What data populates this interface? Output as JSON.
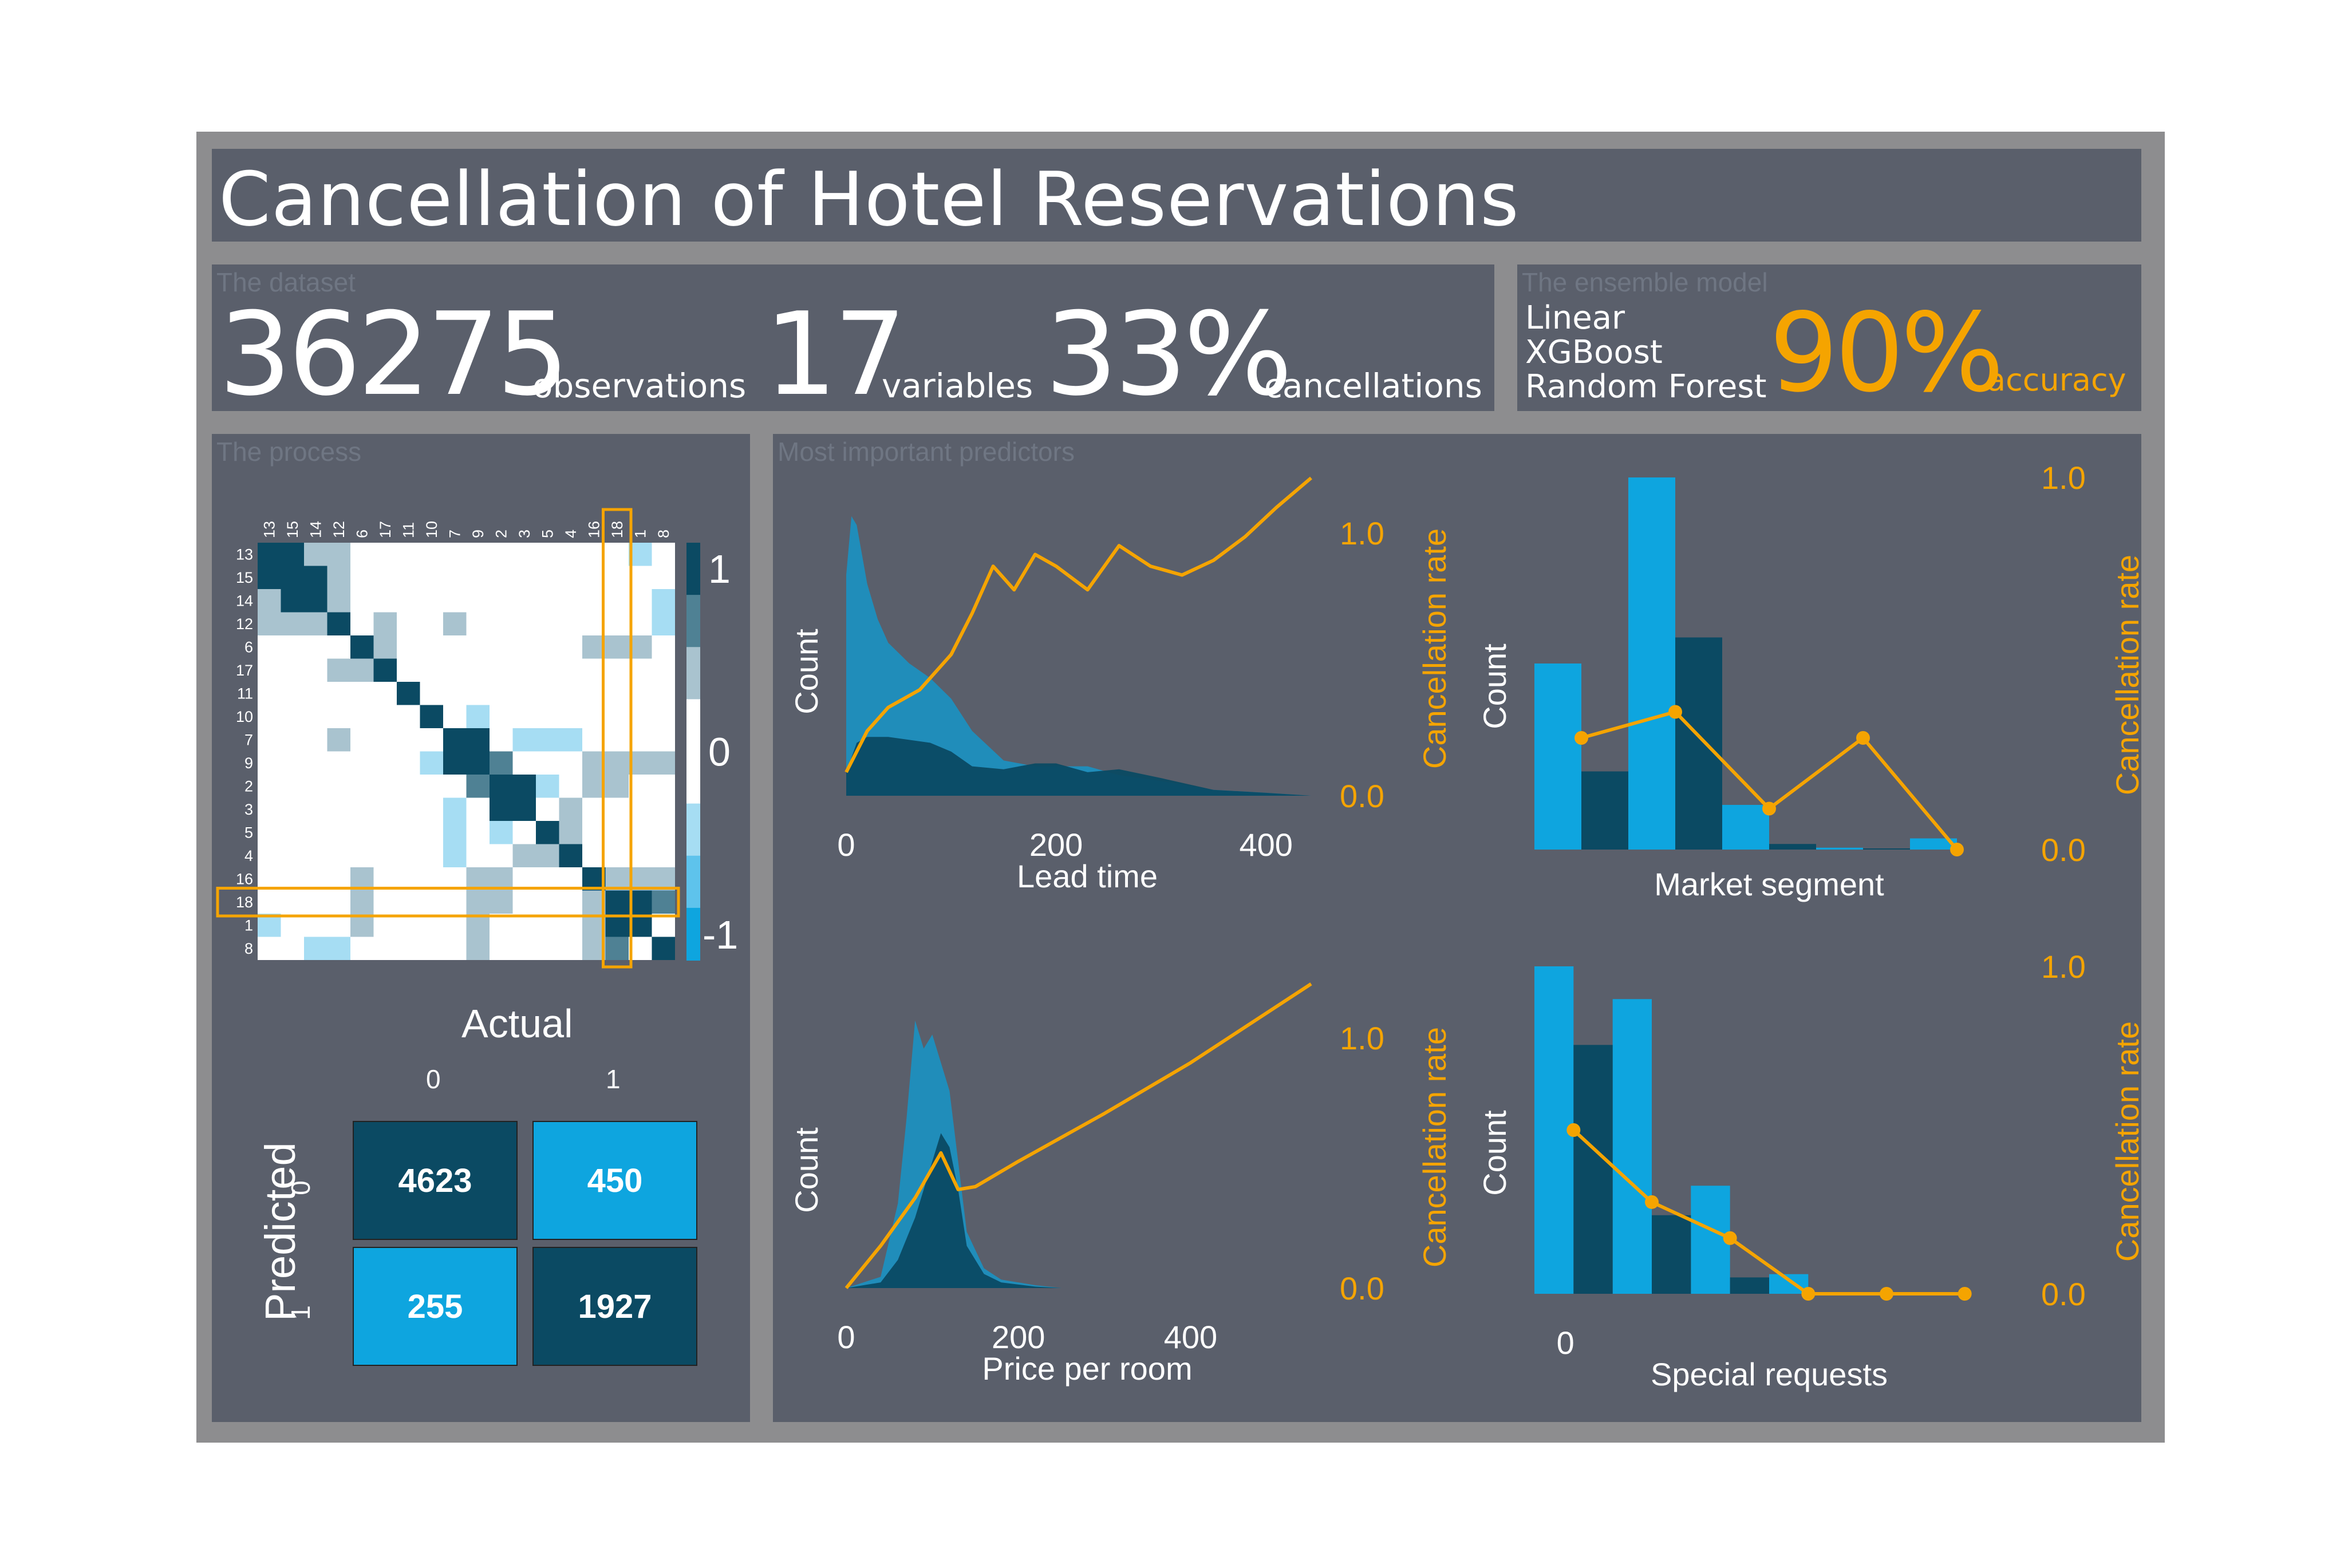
{
  "title": "Cancellation of Hotel Reservations",
  "dataset": {
    "label": "The dataset",
    "stats": [
      {
        "value": "36275",
        "unit": "observations"
      },
      {
        "value": "17",
        "unit": "variables"
      },
      {
        "value": "33%",
        "unit": "cancellations"
      }
    ]
  },
  "ensemble": {
    "label": "The ensemble model",
    "models": [
      "Linear",
      "XGBoost",
      "Random Forest"
    ],
    "accuracy_value": "90%",
    "accuracy_unit": "accuracy"
  },
  "process": {
    "label": "The process",
    "corr_labels": [
      "13",
      "15",
      "14",
      "12",
      "6",
      "17",
      "11",
      "10",
      "7",
      "9",
      "2",
      "3",
      "5",
      "4",
      "16",
      "18",
      "1",
      "8"
    ],
    "highlight_label": "18",
    "colorbar_ticks": [
      "1",
      "0",
      "-1"
    ],
    "confusion": {
      "actual_label": "Actual",
      "predicted_label": "Predicted",
      "col_labels": [
        "0",
        "1"
      ],
      "row_labels": [
        "0",
        "1"
      ],
      "cells": [
        [
          "4623",
          "450"
        ],
        [
          "255",
          "1927"
        ]
      ]
    }
  },
  "predictors_label": "Most important predictors",
  "colors": {
    "frame": "#8d8d8f",
    "panel": "#5a5f6b",
    "light_blue": "#0ea5df",
    "dark_blue": "#0b4a63",
    "orange": "#f5a400",
    "pale": "#a9c3cf"
  },
  "chart_data": [
    {
      "type": "heatmap",
      "title": "",
      "row_labels": [
        "13",
        "15",
        "14",
        "12",
        "6",
        "17",
        "11",
        "10",
        "7",
        "9",
        "2",
        "3",
        "5",
        "4",
        "16",
        "18",
        "1",
        "8"
      ],
      "col_labels": [
        "13",
        "15",
        "14",
        "12",
        "6",
        "17",
        "11",
        "10",
        "7",
        "9",
        "2",
        "3",
        "5",
        "4",
        "16",
        "18",
        "1",
        "8"
      ],
      "value_range": [
        -1,
        1
      ],
      "cells": [
        {
          "r": "13",
          "c": "15",
          "v": 0.9
        },
        {
          "r": "13",
          "c": "14",
          "v": 0.4
        },
        {
          "r": "13",
          "c": "12",
          "v": 0.4
        },
        {
          "r": "13",
          "c": "1",
          "v": -0.3
        },
        {
          "r": "15",
          "c": "14",
          "v": 0.9
        },
        {
          "r": "15",
          "c": "12",
          "v": 0.4
        },
        {
          "r": "14",
          "c": "12",
          "v": 0.4
        },
        {
          "r": "12",
          "c": "17",
          "v": 0.4
        },
        {
          "r": "12",
          "c": "7",
          "v": 0.4
        },
        {
          "r": "12",
          "c": "8",
          "v": -0.3
        },
        {
          "r": "6",
          "c": "17",
          "v": 0.4
        },
        {
          "r": "6",
          "c": "18",
          "v": 0.4
        },
        {
          "r": "6",
          "c": "1",
          "v": 0.4
        },
        {
          "r": "10",
          "c": "9",
          "v": -0.3
        },
        {
          "r": "7",
          "c": "9",
          "v": 0.9
        },
        {
          "r": "7",
          "c": "3",
          "v": -0.3
        },
        {
          "r": "7",
          "c": "4",
          "v": -0.3
        },
        {
          "r": "9",
          "c": "2",
          "v": 0.6
        },
        {
          "r": "9",
          "c": "18",
          "v": 0.4
        },
        {
          "r": "9",
          "c": "8",
          "v": 0.4
        },
        {
          "r": "2",
          "c": "3",
          "v": 0.9
        },
        {
          "r": "2",
          "c": "18",
          "v": 0.4
        },
        {
          "r": "3",
          "c": "4",
          "v": 0.4
        },
        {
          "r": "5",
          "c": "7",
          "v": -0.3
        },
        {
          "r": "5",
          "c": "2",
          "v": -0.3
        },
        {
          "r": "5",
          "c": "4",
          "v": 0.4
        },
        {
          "r": "16",
          "c": "6",
          "v": 0.4
        },
        {
          "r": "16",
          "c": "9",
          "v": 0.4
        },
        {
          "r": "16",
          "c": "2",
          "v": 0.4
        },
        {
          "r": "16",
          "c": "18",
          "v": 0.4
        },
        {
          "r": "16",
          "c": "8",
          "v": 0.4
        },
        {
          "r": "18",
          "c": "16",
          "v": 0.4
        },
        {
          "r": "18",
          "c": "8",
          "v": 0.6
        },
        {
          "r": "1",
          "c": "6",
          "v": 0.4
        },
        {
          "r": "1",
          "c": "9",
          "v": 0.4
        },
        {
          "r": "1",
          "c": "16",
          "v": 0.4
        },
        {
          "r": "1",
          "c": "18",
          "v": 0.9
        },
        {
          "r": "8",
          "c": "14",
          "v": -0.3
        },
        {
          "r": "8",
          "c": "9",
          "v": 0.4
        },
        {
          "r": "8",
          "c": "16",
          "v": 0.4
        },
        {
          "r": "8",
          "c": "18",
          "v": 0.6
        }
      ]
    },
    {
      "type": "area",
      "title": "",
      "xlabel": "Lead time",
      "ylabel": "Count",
      "y2label": "Cancellation rate",
      "xticks": [
        0,
        200,
        400
      ],
      "y2ticks": [
        "0.0",
        "1.0"
      ],
      "xlim": [
        0,
        443
      ],
      "ylim": [
        0,
        1
      ],
      "y2lim": [
        0,
        1
      ],
      "series": [
        {
          "role": "total",
          "x": [
            0,
            5,
            10,
            15,
            20,
            30,
            40,
            60,
            80,
            100,
            120,
            150,
            180,
            200,
            230,
            260,
            300,
            350,
            400,
            443
          ],
          "values": [
            0.75,
            0.95,
            0.92,
            0.82,
            0.72,
            0.6,
            0.52,
            0.45,
            0.4,
            0.33,
            0.22,
            0.12,
            0.1,
            0.1,
            0.1,
            0.07,
            0.05,
            0.02,
            0.01,
            0.0
          ]
        },
        {
          "role": "cancelled",
          "x": [
            0,
            10,
            20,
            40,
            60,
            80,
            100,
            120,
            150,
            180,
            200,
            230,
            260,
            300,
            350,
            400,
            443
          ],
          "values": [
            0.08,
            0.18,
            0.2,
            0.2,
            0.19,
            0.18,
            0.15,
            0.1,
            0.09,
            0.11,
            0.11,
            0.08,
            0.09,
            0.06,
            0.02,
            0.01,
            0.0
          ]
        },
        {
          "role": "rate",
          "x": [
            0,
            20,
            40,
            70,
            100,
            120,
            140,
            160,
            180,
            200,
            230,
            260,
            290,
            320,
            350,
            380,
            410,
            443
          ],
          "values": [
            0.08,
            0.22,
            0.3,
            0.36,
            0.48,
            0.62,
            0.78,
            0.7,
            0.82,
            0.78,
            0.7,
            0.85,
            0.78,
            0.75,
            0.8,
            0.88,
            0.98,
            1.08
          ]
        }
      ]
    },
    {
      "type": "bar",
      "title": "",
      "xlabel": "Market segment",
      "ylabel": "Count",
      "y2label": "Cancellation rate",
      "y2ticks": [
        "0.0",
        "1.0"
      ],
      "categories": [
        "",
        "",
        "",
        "",
        ""
      ],
      "ylim": [
        0,
        1
      ],
      "y2lim": [
        0,
        1
      ],
      "series": [
        {
          "role": "total",
          "values": [
            0.5,
            1.0,
            0.12,
            0.005,
            0.03
          ]
        },
        {
          "role": "cancelled",
          "values": [
            0.21,
            0.57,
            0.015,
            0.003,
            0.0
          ]
        },
        {
          "role": "rate",
          "x_pos": [
            0.5,
            1.5,
            2.5,
            3.5,
            4.5
          ],
          "values": [
            0.3,
            0.37,
            0.11,
            0.3,
            0.0
          ]
        }
      ]
    },
    {
      "type": "area",
      "title": "",
      "xlabel": "Price per room",
      "ylabel": "Count",
      "y2label": "Cancellation rate",
      "xticks": [
        0,
        200,
        400
      ],
      "y2ticks": [
        "0.0",
        "1.0"
      ],
      "xlim": [
        0,
        540
      ],
      "ylim": [
        0,
        1
      ],
      "y2lim": [
        0,
        1
      ],
      "series": [
        {
          "role": "total",
          "x": [
            0,
            40,
            60,
            70,
            80,
            90,
            100,
            110,
            120,
            130,
            140,
            160,
            180,
            220,
            250
          ],
          "values": [
            0.0,
            0.04,
            0.3,
            0.6,
            0.95,
            0.85,
            0.9,
            0.8,
            0.7,
            0.45,
            0.2,
            0.07,
            0.03,
            0.01,
            0.0
          ]
        },
        {
          "role": "cancelled",
          "x": [
            0,
            40,
            60,
            80,
            100,
            110,
            120,
            130,
            140,
            160,
            180,
            220,
            250
          ],
          "values": [
            0.0,
            0.02,
            0.1,
            0.25,
            0.45,
            0.55,
            0.5,
            0.35,
            0.15,
            0.05,
            0.02,
            0.005,
            0.0
          ]
        },
        {
          "role": "rate",
          "x": [
            0,
            40,
            80,
            110,
            130,
            150,
            200,
            300,
            400,
            540
          ],
          "values": [
            0.0,
            0.15,
            0.32,
            0.48,
            0.35,
            0.36,
            0.45,
            0.62,
            0.8,
            1.08
          ]
        }
      ]
    },
    {
      "type": "bar",
      "title": "",
      "xlabel": "Special requests",
      "ylabel": "Count",
      "y2label": "Cancellation rate",
      "xticks": [
        0
      ],
      "y2ticks": [
        "0.0",
        "1.0"
      ],
      "categories": [
        "0",
        "",
        "",
        "",
        "",
        ""
      ],
      "ylim": [
        0,
        1
      ],
      "y2lim": [
        0,
        1
      ],
      "series": [
        {
          "role": "total",
          "values": [
            1.0,
            0.9,
            0.33,
            0.06,
            0.0,
            0.0
          ]
        },
        {
          "role": "cancelled",
          "values": [
            0.76,
            0.24,
            0.05,
            0.0,
            0.0,
            0.0
          ]
        },
        {
          "role": "rate",
          "x_pos": [
            0.5,
            1.5,
            2.5,
            3.5,
            4.5,
            5.5
          ],
          "values": [
            0.5,
            0.28,
            0.17,
            0.0,
            0.0,
            0.0
          ]
        }
      ]
    }
  ]
}
